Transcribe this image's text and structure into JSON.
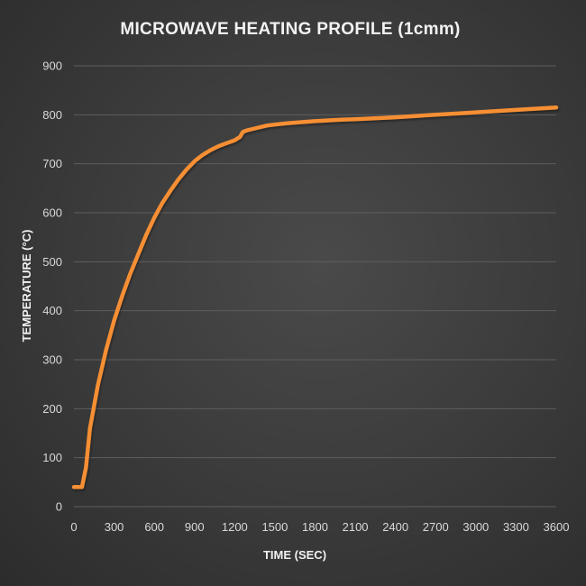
{
  "chart_data": {
    "type": "line",
    "title": "MICROWAVE HEATING PROFILE (1cmm)",
    "xlabel": "TIME (SEC)",
    "ylabel": "TEMPERATURE (°C)",
    "xlim": [
      0,
      3600
    ],
    "ylim": [
      0,
      900
    ],
    "x_ticks": [
      "0",
      "300",
      "600",
      "900",
      "1200",
      "1500",
      "1800",
      "2100",
      "2400",
      "2700",
      "3000",
      "3300",
      "3600"
    ],
    "y_ticks": [
      "0",
      "100",
      "200",
      "300",
      "400",
      "500",
      "600",
      "700",
      "800",
      "900"
    ],
    "grid": true,
    "legend": "none",
    "series": [
      {
        "name": "Temperature",
        "color": "#f68f34",
        "x": [
          0,
          60,
          90,
          120,
          180,
          240,
          300,
          360,
          420,
          480,
          540,
          600,
          660,
          720,
          780,
          840,
          900,
          960,
          1020,
          1080,
          1140,
          1200,
          1240,
          1260,
          1290,
          1350,
          1440,
          1500,
          1600,
          1800,
          2000,
          2100,
          2400,
          2700,
          3000,
          3300,
          3600
        ],
        "y": [
          40,
          40,
          80,
          160,
          250,
          320,
          380,
          430,
          475,
          515,
          555,
          590,
          620,
          645,
          668,
          688,
          705,
          718,
          728,
          736,
          742,
          748,
          755,
          765,
          768,
          772,
          778,
          780,
          783,
          787,
          790,
          791,
          795,
          800,
          805,
          810,
          815
        ]
      }
    ]
  }
}
